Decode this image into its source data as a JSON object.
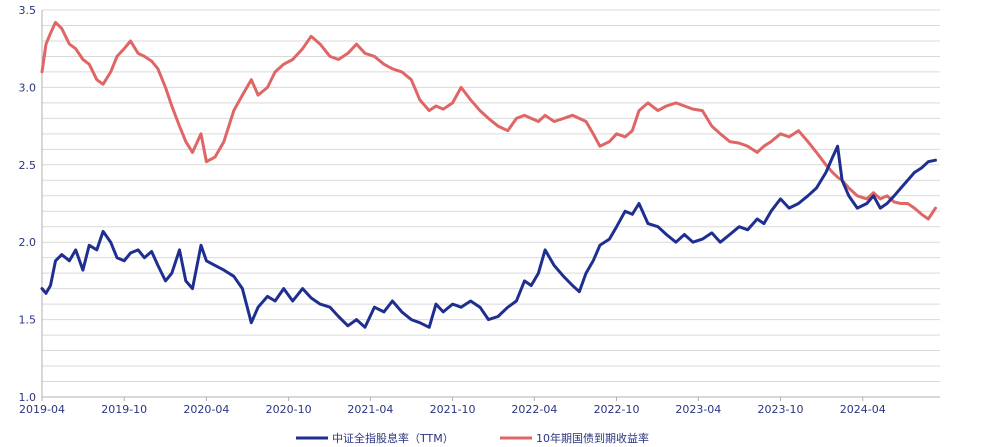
{
  "chart_data": {
    "type": "line",
    "title": "",
    "xlabel": "",
    "ylabel": "",
    "ylim": [
      1.0,
      3.5
    ],
    "yticks": [
      1.0,
      1.5,
      2.0,
      2.5,
      3.0,
      3.5
    ],
    "ytick_labels": [
      "1.0",
      "1.5",
      "2.0",
      "2.5",
      "3.0",
      "3.5"
    ],
    "xlim": [
      "2019-04-01",
      "2024-09-20"
    ],
    "xticks": [
      "2019-04",
      "2019-10",
      "2020-04",
      "2020-10",
      "2021-04",
      "2021-10",
      "2022-04",
      "2022-10",
      "2023-04",
      "2023-10",
      "2024-04"
    ],
    "grid": true,
    "legend_position": "bottom",
    "series": [
      {
        "name": "中证全指股息率（TTM）",
        "color": "#1f2f8f",
        "points": [
          [
            "2019-04-01",
            1.7
          ],
          [
            "2019-04-10",
            1.67
          ],
          [
            "2019-04-20",
            1.72
          ],
          [
            "2019-05-01",
            1.88
          ],
          [
            "2019-05-15",
            1.92
          ],
          [
            "2019-06-01",
            1.88
          ],
          [
            "2019-06-15",
            1.95
          ],
          [
            "2019-07-01",
            1.82
          ],
          [
            "2019-07-15",
            1.98
          ],
          [
            "2019-08-01",
            1.95
          ],
          [
            "2019-08-15",
            2.07
          ],
          [
            "2019-09-01",
            2.0
          ],
          [
            "2019-09-15",
            1.9
          ],
          [
            "2019-10-01",
            1.88
          ],
          [
            "2019-10-15",
            1.93
          ],
          [
            "2019-11-01",
            1.95
          ],
          [
            "2019-11-15",
            1.9
          ],
          [
            "2019-12-01",
            1.94
          ],
          [
            "2019-12-15",
            1.85
          ],
          [
            "2020-01-01",
            1.75
          ],
          [
            "2020-01-15",
            1.8
          ],
          [
            "2020-02-01",
            1.95
          ],
          [
            "2020-02-15",
            1.75
          ],
          [
            "2020-03-01",
            1.7
          ],
          [
            "2020-03-20",
            1.98
          ],
          [
            "2020-04-01",
            1.88
          ],
          [
            "2020-04-20",
            1.85
          ],
          [
            "2020-05-10",
            1.82
          ],
          [
            "2020-06-01",
            1.78
          ],
          [
            "2020-06-20",
            1.7
          ],
          [
            "2020-07-10",
            1.48
          ],
          [
            "2020-07-25",
            1.58
          ],
          [
            "2020-08-15",
            1.65
          ],
          [
            "2020-09-01",
            1.62
          ],
          [
            "2020-09-20",
            1.7
          ],
          [
            "2020-10-10",
            1.62
          ],
          [
            "2020-11-01",
            1.7
          ],
          [
            "2020-11-20",
            1.64
          ],
          [
            "2020-12-10",
            1.6
          ],
          [
            "2021-01-01",
            1.58
          ],
          [
            "2021-01-20",
            1.52
          ],
          [
            "2021-02-10",
            1.46
          ],
          [
            "2021-03-01",
            1.5
          ],
          [
            "2021-03-20",
            1.45
          ],
          [
            "2021-04-10",
            1.58
          ],
          [
            "2021-05-01",
            1.55
          ],
          [
            "2021-05-20",
            1.62
          ],
          [
            "2021-06-10",
            1.55
          ],
          [
            "2021-07-01",
            1.5
          ],
          [
            "2021-07-20",
            1.48
          ],
          [
            "2021-08-10",
            1.45
          ],
          [
            "2021-08-25",
            1.6
          ],
          [
            "2021-09-10",
            1.55
          ],
          [
            "2021-10-01",
            1.6
          ],
          [
            "2021-10-20",
            1.58
          ],
          [
            "2021-11-10",
            1.62
          ],
          [
            "2021-12-01",
            1.58
          ],
          [
            "2021-12-20",
            1.5
          ],
          [
            "2022-01-10",
            1.52
          ],
          [
            "2022-02-01",
            1.58
          ],
          [
            "2022-02-20",
            1.62
          ],
          [
            "2022-03-10",
            1.75
          ],
          [
            "2022-03-25",
            1.72
          ],
          [
            "2022-04-10",
            1.8
          ],
          [
            "2022-04-25",
            1.95
          ],
          [
            "2022-05-15",
            1.85
          ],
          [
            "2022-06-05",
            1.78
          ],
          [
            "2022-06-25",
            1.72
          ],
          [
            "2022-07-10",
            1.68
          ],
          [
            "2022-07-25",
            1.8
          ],
          [
            "2022-08-10",
            1.88
          ],
          [
            "2022-08-25",
            1.98
          ],
          [
            "2022-09-15",
            2.02
          ],
          [
            "2022-10-01",
            2.1
          ],
          [
            "2022-10-20",
            2.2
          ],
          [
            "2022-11-05",
            2.18
          ],
          [
            "2022-11-20",
            2.25
          ],
          [
            "2022-12-10",
            2.12
          ],
          [
            "2023-01-01",
            2.1
          ],
          [
            "2023-01-20",
            2.05
          ],
          [
            "2023-02-10",
            2.0
          ],
          [
            "2023-03-01",
            2.05
          ],
          [
            "2023-03-20",
            2.0
          ],
          [
            "2023-04-10",
            2.02
          ],
          [
            "2023-05-01",
            2.06
          ],
          [
            "2023-05-20",
            2.0
          ],
          [
            "2023-06-10",
            2.05
          ],
          [
            "2023-07-01",
            2.1
          ],
          [
            "2023-07-20",
            2.08
          ],
          [
            "2023-08-10",
            2.15
          ],
          [
            "2023-08-25",
            2.12
          ],
          [
            "2023-09-10",
            2.2
          ],
          [
            "2023-10-01",
            2.28
          ],
          [
            "2023-10-20",
            2.22
          ],
          [
            "2023-11-10",
            2.25
          ],
          [
            "2023-12-01",
            2.3
          ],
          [
            "2023-12-20",
            2.35
          ],
          [
            "2024-01-10",
            2.45
          ],
          [
            "2024-01-25",
            2.55
          ],
          [
            "2024-02-05",
            2.62
          ],
          [
            "2024-02-15",
            2.4
          ],
          [
            "2024-03-01",
            2.3
          ],
          [
            "2024-03-20",
            2.22
          ],
          [
            "2024-04-10",
            2.25
          ],
          [
            "2024-04-25",
            2.3
          ],
          [
            "2024-05-10",
            2.22
          ],
          [
            "2024-05-25",
            2.25
          ],
          [
            "2024-06-10",
            2.3
          ],
          [
            "2024-06-25",
            2.35
          ],
          [
            "2024-07-10",
            2.4
          ],
          [
            "2024-07-25",
            2.45
          ],
          [
            "2024-08-10",
            2.48
          ],
          [
            "2024-08-25",
            2.52
          ],
          [
            "2024-09-10",
            2.53
          ]
        ]
      },
      {
        "name": "10年期国债到期收益率",
        "color": "#e06666",
        "points": [
          [
            "2019-04-01",
            3.1
          ],
          [
            "2019-04-10",
            3.28
          ],
          [
            "2019-04-20",
            3.35
          ],
          [
            "2019-05-01",
            3.42
          ],
          [
            "2019-05-15",
            3.38
          ],
          [
            "2019-06-01",
            3.28
          ],
          [
            "2019-06-15",
            3.25
          ],
          [
            "2019-07-01",
            3.18
          ],
          [
            "2019-07-15",
            3.15
          ],
          [
            "2019-08-01",
            3.05
          ],
          [
            "2019-08-15",
            3.02
          ],
          [
            "2019-09-01",
            3.1
          ],
          [
            "2019-09-15",
            3.2
          ],
          [
            "2019-10-01",
            3.25
          ],
          [
            "2019-10-15",
            3.3
          ],
          [
            "2019-11-01",
            3.22
          ],
          [
            "2019-11-15",
            3.2
          ],
          [
            "2019-12-01",
            3.17
          ],
          [
            "2019-12-15",
            3.12
          ],
          [
            "2020-01-01",
            3.0
          ],
          [
            "2020-01-15",
            2.88
          ],
          [
            "2020-02-01",
            2.75
          ],
          [
            "2020-02-15",
            2.65
          ],
          [
            "2020-03-01",
            2.58
          ],
          [
            "2020-03-20",
            2.7
          ],
          [
            "2020-04-01",
            2.52
          ],
          [
            "2020-04-20",
            2.55
          ],
          [
            "2020-05-10",
            2.65
          ],
          [
            "2020-06-01",
            2.85
          ],
          [
            "2020-06-20",
            2.95
          ],
          [
            "2020-07-10",
            3.05
          ],
          [
            "2020-07-25",
            2.95
          ],
          [
            "2020-08-15",
            3.0
          ],
          [
            "2020-09-01",
            3.1
          ],
          [
            "2020-09-20",
            3.15
          ],
          [
            "2020-10-10",
            3.18
          ],
          [
            "2020-11-01",
            3.25
          ],
          [
            "2020-11-20",
            3.33
          ],
          [
            "2020-12-10",
            3.28
          ],
          [
            "2021-01-01",
            3.2
          ],
          [
            "2021-01-20",
            3.18
          ],
          [
            "2021-02-10",
            3.22
          ],
          [
            "2021-03-01",
            3.28
          ],
          [
            "2021-03-20",
            3.22
          ],
          [
            "2021-04-10",
            3.2
          ],
          [
            "2021-05-01",
            3.15
          ],
          [
            "2021-05-20",
            3.12
          ],
          [
            "2021-06-10",
            3.1
          ],
          [
            "2021-07-01",
            3.05
          ],
          [
            "2021-07-20",
            2.92
          ],
          [
            "2021-08-10",
            2.85
          ],
          [
            "2021-08-25",
            2.88
          ],
          [
            "2021-09-10",
            2.86
          ],
          [
            "2021-10-01",
            2.9
          ],
          [
            "2021-10-20",
            3.0
          ],
          [
            "2021-11-10",
            2.92
          ],
          [
            "2021-12-01",
            2.85
          ],
          [
            "2021-12-20",
            2.8
          ],
          [
            "2022-01-10",
            2.75
          ],
          [
            "2022-02-01",
            2.72
          ],
          [
            "2022-02-20",
            2.8
          ],
          [
            "2022-03-10",
            2.82
          ],
          [
            "2022-03-25",
            2.8
          ],
          [
            "2022-04-10",
            2.78
          ],
          [
            "2022-04-25",
            2.82
          ],
          [
            "2022-05-15",
            2.78
          ],
          [
            "2022-06-05",
            2.8
          ],
          [
            "2022-06-25",
            2.82
          ],
          [
            "2022-07-10",
            2.8
          ],
          [
            "2022-07-25",
            2.78
          ],
          [
            "2022-08-10",
            2.7
          ],
          [
            "2022-08-25",
            2.62
          ],
          [
            "2022-09-15",
            2.65
          ],
          [
            "2022-10-01",
            2.7
          ],
          [
            "2022-10-20",
            2.68
          ],
          [
            "2022-11-05",
            2.72
          ],
          [
            "2022-11-20",
            2.85
          ],
          [
            "2022-12-10",
            2.9
          ],
          [
            "2023-01-01",
            2.85
          ],
          [
            "2023-01-20",
            2.88
          ],
          [
            "2023-02-10",
            2.9
          ],
          [
            "2023-03-01",
            2.88
          ],
          [
            "2023-03-20",
            2.86
          ],
          [
            "2023-04-10",
            2.85
          ],
          [
            "2023-05-01",
            2.75
          ],
          [
            "2023-05-20",
            2.7
          ],
          [
            "2023-06-10",
            2.65
          ],
          [
            "2023-07-01",
            2.64
          ],
          [
            "2023-07-20",
            2.62
          ],
          [
            "2023-08-10",
            2.58
          ],
          [
            "2023-08-25",
            2.62
          ],
          [
            "2023-09-10",
            2.65
          ],
          [
            "2023-10-01",
            2.7
          ],
          [
            "2023-10-20",
            2.68
          ],
          [
            "2023-11-10",
            2.72
          ],
          [
            "2023-12-01",
            2.65
          ],
          [
            "2023-12-20",
            2.58
          ],
          [
            "2024-01-10",
            2.5
          ],
          [
            "2024-01-25",
            2.45
          ],
          [
            "2024-02-05",
            2.42
          ],
          [
            "2024-02-15",
            2.4
          ],
          [
            "2024-03-01",
            2.35
          ],
          [
            "2024-03-20",
            2.3
          ],
          [
            "2024-04-10",
            2.28
          ],
          [
            "2024-04-25",
            2.32
          ],
          [
            "2024-05-10",
            2.28
          ],
          [
            "2024-05-25",
            2.3
          ],
          [
            "2024-06-10",
            2.26
          ],
          [
            "2024-06-25",
            2.25
          ],
          [
            "2024-07-10",
            2.25
          ],
          [
            "2024-07-25",
            2.22
          ],
          [
            "2024-08-10",
            2.18
          ],
          [
            "2024-08-25",
            2.15
          ],
          [
            "2024-09-10",
            2.22
          ]
        ]
      }
    ]
  }
}
